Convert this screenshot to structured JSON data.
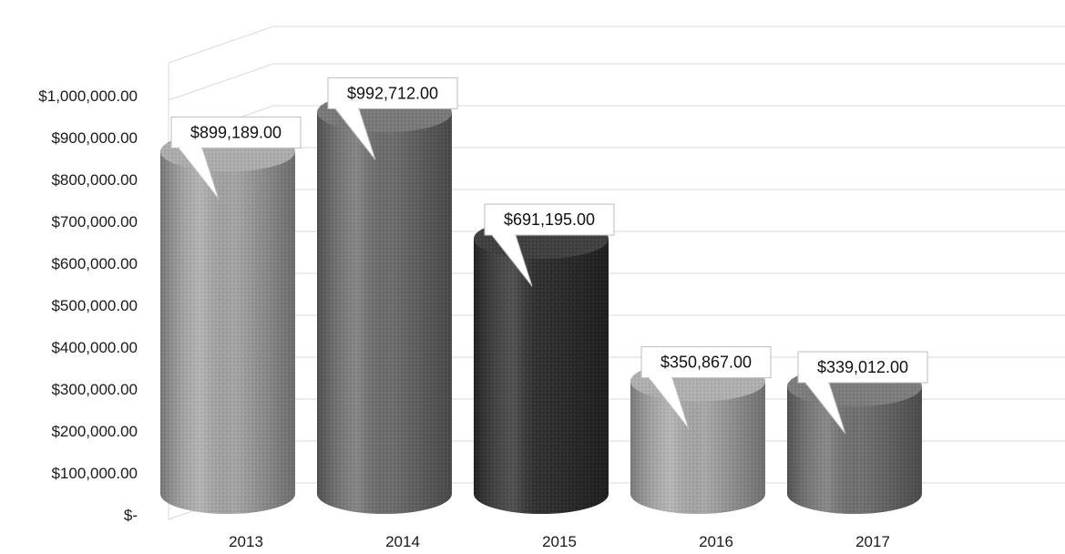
{
  "chart_data": {
    "type": "bar",
    "style": "3d-cylinder",
    "categories": [
      "2013",
      "2014",
      "2015",
      "2016",
      "2017"
    ],
    "values": [
      899189,
      992712,
      691195,
      350867,
      339012
    ],
    "data_labels": [
      "$899,189.00",
      "$992,712.00",
      "$691,195.00",
      "$350,867.00",
      "$339,012.00"
    ],
    "yticks": [
      0,
      100000,
      200000,
      300000,
      400000,
      500000,
      600000,
      700000,
      800000,
      900000,
      1000000
    ],
    "ytick_labels": [
      "$-",
      "$100,000.00",
      "$200,000.00",
      "$300,000.00",
      "$400,000.00",
      "$500,000.00",
      "$600,000.00",
      "$700,000.00",
      "$800,000.00",
      "$900,000.00",
      "$1,000,000.00"
    ],
    "ylim": [
      0,
      1100000
    ],
    "grid": true,
    "legend": "none",
    "title": "",
    "xlabel": "",
    "ylabel": "",
    "colors": {
      "bars": [
        "#a6a6a6",
        "#6e6e6e",
        "#2f2f2f",
        "#a9a9a9",
        "#727272"
      ],
      "grid": "#d9d9d9",
      "label_border": "#bdbdbd"
    }
  }
}
